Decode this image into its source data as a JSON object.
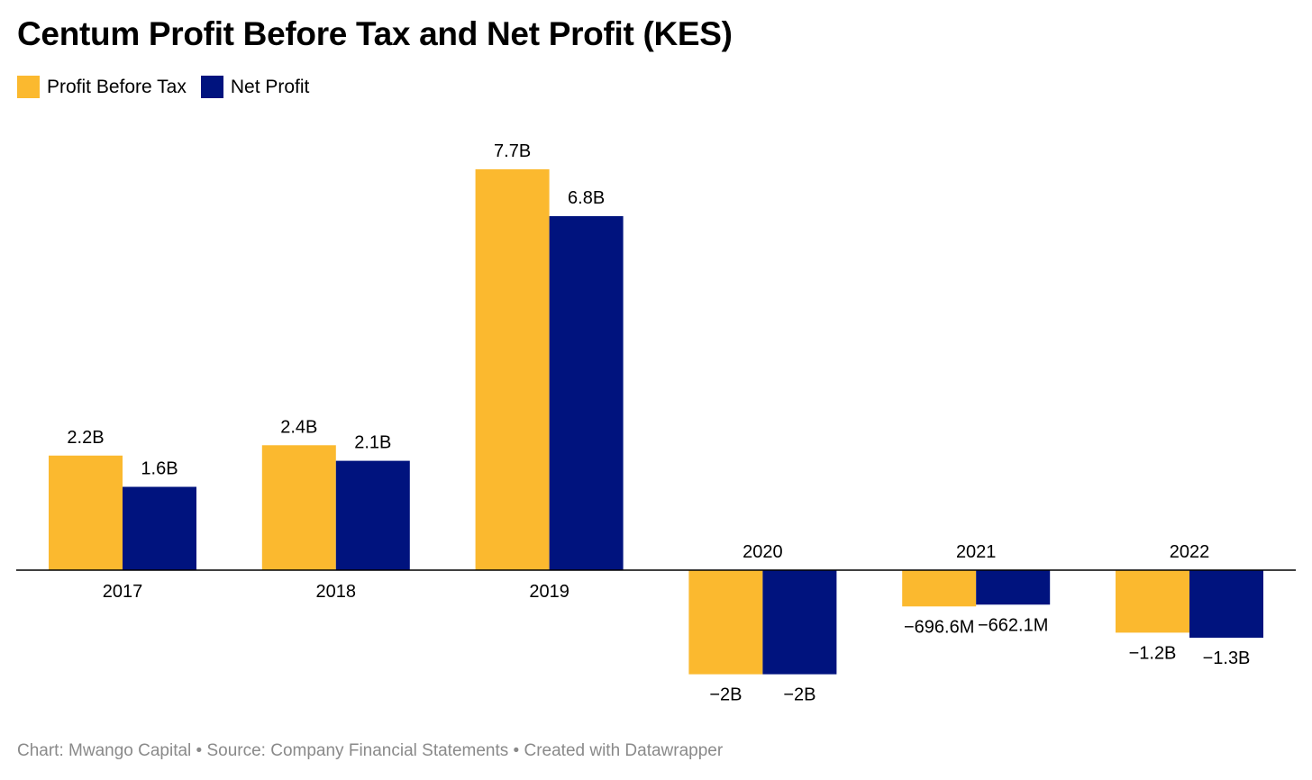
{
  "title": "Centum Profit Before Tax and Net Profit (KES)",
  "legend": [
    {
      "label": "Profit Before Tax",
      "color": "#fbb92f"
    },
    {
      "label": "Net Profit",
      "color": "#00137e"
    }
  ],
  "footer": {
    "chart_credit": "Chart: Mwango Capital",
    "separator": "•",
    "source": "Source: Company Financial Statements",
    "created_with": "Created with Datawrapper"
  },
  "chart_data": {
    "type": "bar",
    "title": "Centum Profit Before Tax and Net Profit (KES)",
    "categories": [
      "2017",
      "2018",
      "2019",
      "2020",
      "2021",
      "2022"
    ],
    "series": [
      {
        "name": "Profit Before Tax",
        "color": "#fbb92f",
        "values": [
          2200000000,
          2400000000,
          7700000000,
          -2000000000,
          -696600000,
          -1200000000
        ],
        "labels": [
          "2.2B",
          "2.4B",
          "7.7B",
          "−2B",
          "−696.6M",
          "−1.2B"
        ]
      },
      {
        "name": "Net Profit",
        "color": "#00137e",
        "values": [
          1600000000,
          2100000000,
          6800000000,
          -2000000000,
          -662100000,
          -1300000000
        ],
        "labels": [
          "1.6B",
          "2.1B",
          "6.8B",
          "−2B",
          "−662.1M",
          "−1.3B"
        ]
      }
    ],
    "xlabel": "",
    "ylabel": "",
    "grid": false,
    "legend_position": "top-left"
  }
}
